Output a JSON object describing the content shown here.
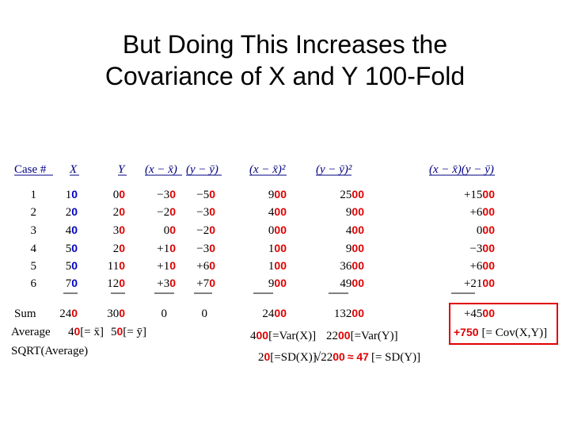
{
  "title": {
    "line1": "But Doing This Increases the",
    "line2": "Covariance of X and Y 100-Fold"
  },
  "headers": {
    "case": "Case #",
    "x": "X",
    "y": "Y",
    "dx": "(x − x̄)",
    "dy": "(y − ȳ)",
    "dx2": "(x − x̄)²",
    "dy2": "(y − ȳ)²",
    "dxdy": "(x − x̄)(y − ȳ)"
  },
  "rows": [
    {
      "case": "1",
      "x": "1",
      "x_add": "0",
      "y": "0",
      "y_add": "0",
      "dx": "−3",
      "dx_add": "0",
      "dy": "−5",
      "dy_add": "0",
      "dx2": "9",
      "dx2_add": "00",
      "dy2": "25",
      "dy2_add": "00",
      "dxdy": "+15",
      "dxdy_add": "00"
    },
    {
      "case": "2",
      "x": "2",
      "x_add": "0",
      "y": "2",
      "y_add": "0",
      "dx": "−2",
      "dx_add": "0",
      "dy": "−3",
      "dy_add": "0",
      "dx2": "4",
      "dx2_add": "00",
      "dy2": "9",
      "dy2_add": "00",
      "dxdy": "+6",
      "dxdy_add": "00"
    },
    {
      "case": "3",
      "x": "4",
      "x_add": "0",
      "y": "3",
      "y_add": "0",
      "dx": "0",
      "dx_add": "0",
      "dy": "−2",
      "dy_add": "0",
      "dx2": "0",
      "dx2_add": "00",
      "dy2": "4",
      "dy2_add": "00",
      "dxdy": "0",
      "dxdy_add": "00"
    },
    {
      "case": "4",
      "x": "5",
      "x_add": "0",
      "y": "2",
      "y_add": "0",
      "dx": "+1",
      "dx_add": "0",
      "dy": "−3",
      "dy_add": "0",
      "dx2": "1",
      "dx2_add": "00",
      "dy2": "9",
      "dy2_add": "00",
      "dxdy": "−3",
      "dxdy_add": "00"
    },
    {
      "case": "5",
      "x": "5",
      "x_add": "0",
      "y": "11",
      "y_add": "0",
      "dx": "+1",
      "dx_add": "0",
      "dy": "+6",
      "dy_add": "0",
      "dx2": "1",
      "dx2_add": "00",
      "dy2": "36",
      "dy2_add": "00",
      "dxdy": "+6",
      "dxdy_add": "00"
    },
    {
      "case": "6",
      "x": "7",
      "x_add": "0",
      "y": "12",
      "y_add": "0",
      "dx": "+3",
      "dx_add": "0",
      "dy": "+7",
      "dy_add": "0",
      "dx2": "9",
      "dx2_add": "00",
      "dy2": "49",
      "dy2_add": "00",
      "dxdy": "+21",
      "dxdy_add": "00"
    }
  ],
  "sum": {
    "label": "Sum",
    "x": "24",
    "x_add": "0",
    "y": "30",
    "y_add": "0",
    "dx": "0",
    "dy": "0",
    "dx2": "24",
    "dx2_add": "00",
    "dy2": "132",
    "dy2_add": "00",
    "dxdy": "+45",
    "dxdy_add": "00"
  },
  "average": {
    "label": "Average",
    "x": "4",
    "x_add": "0",
    "x_suffix": "[= x̄]",
    "y": "5",
    "y_add": "0",
    "y_suffix": "[= ȳ]",
    "var_x": "4",
    "var_x_add": "00",
    "var_x_suffix": "[=Var(X)]",
    "var_y": "22",
    "var_y_add": "00",
    "var_y_suffix": "[=Var(Y)]",
    "cov": "+750",
    "cov_suffix": "[= Cov(X,Y)]"
  },
  "sqrt": {
    "label": "SQRT(Average)",
    "sd_x": "2",
    "sd_x_add": "0",
    "sd_x_suffix": "[=SD(X)]",
    "sd_y_root": "√22",
    "sd_y_add": "00",
    "sd_y_approx": "≈ 47",
    "sd_y_suffix": "[= SD(Y)]"
  },
  "colors": {
    "added_zeros": "#e00000",
    "x_added_zeros": "#0000cc",
    "header": "#000080",
    "highlight_box": "#e00000"
  }
}
